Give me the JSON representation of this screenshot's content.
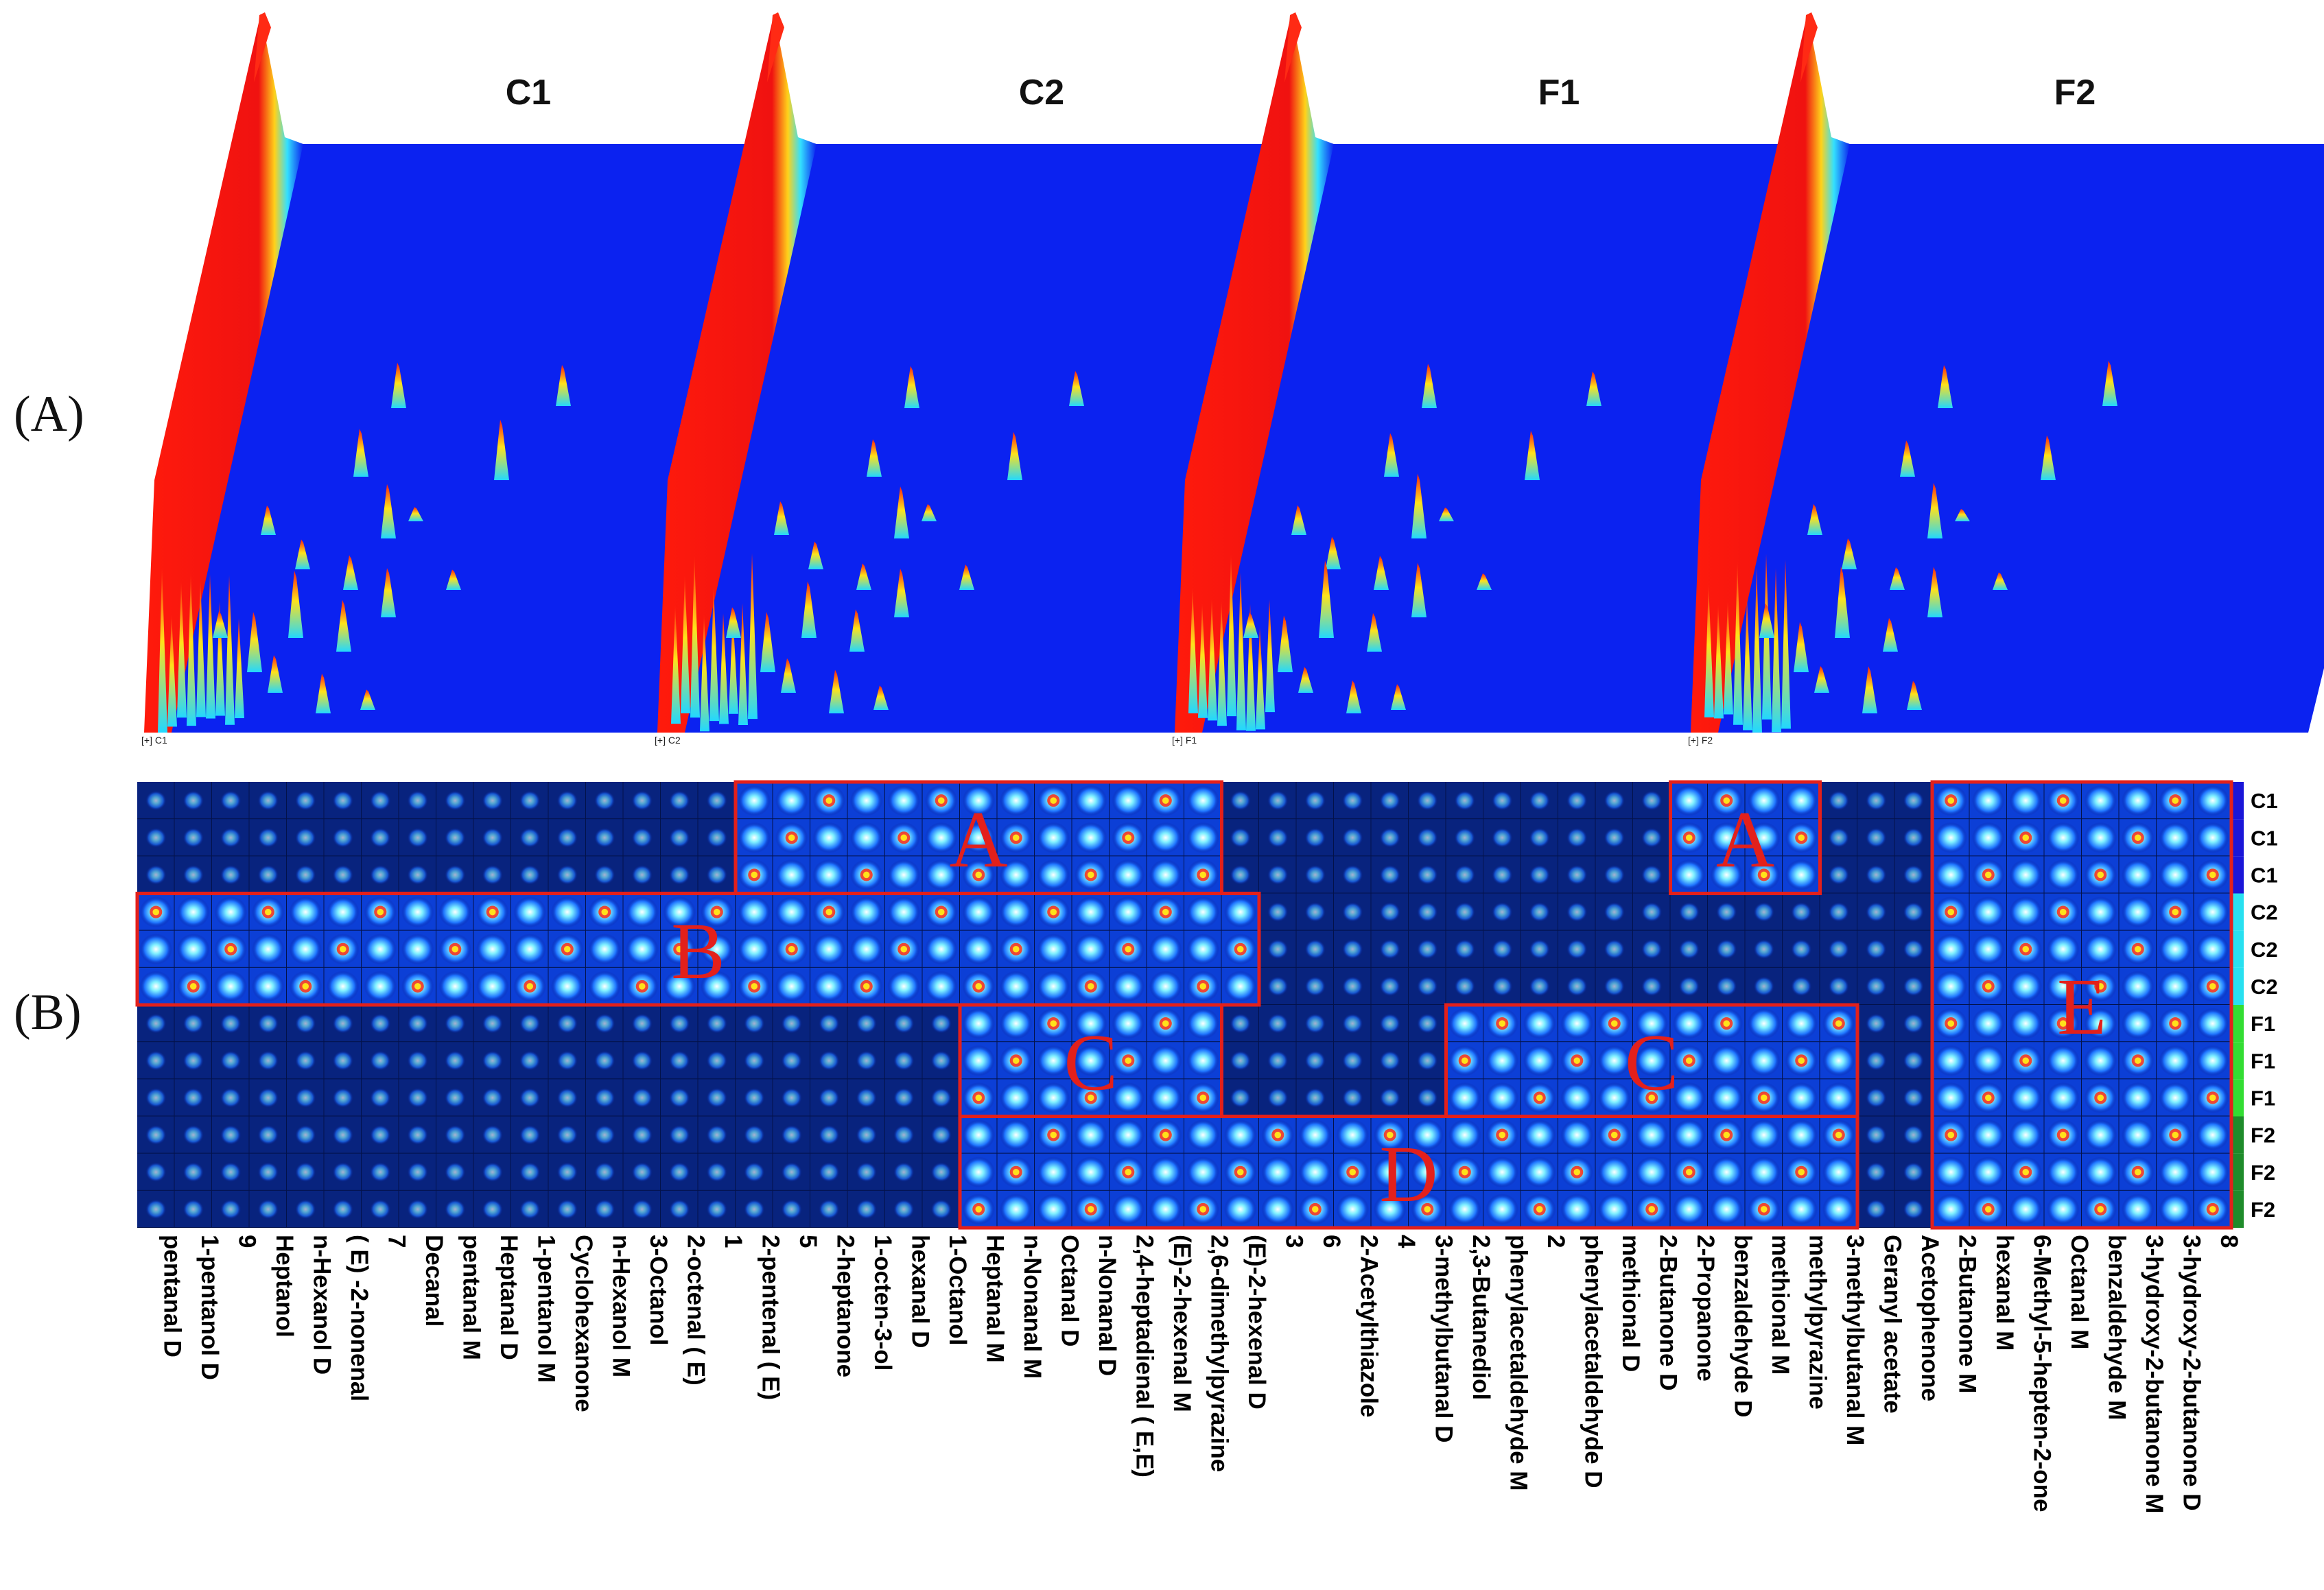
{
  "panel_labels": {
    "a": "(A)",
    "b": "(B)"
  },
  "chart_data": [
    {
      "type": "topographic-3d",
      "title": "(A)",
      "samples": [
        {
          "name": "C1",
          "corner_label": "[+] C1"
        },
        {
          "name": "C2",
          "corner_label": "[+] C2"
        },
        {
          "name": "F1",
          "corner_label": "[+] F1"
        },
        {
          "name": "F2",
          "corner_label": "[+] F2"
        }
      ],
      "colors": {
        "background": "#0b22f0",
        "rip": "#f2140f",
        "peak_low": "#19d7ff",
        "peak_mid": "#ffe21a"
      }
    },
    {
      "type": "heatmap",
      "title": "(B)",
      "row_labels": [
        "C1",
        "C1",
        "C1",
        "C2",
        "C2",
        "C2",
        "F1",
        "F1",
        "F1",
        "F2",
        "F2",
        "F2"
      ],
      "group_colors": {
        "C1": "#1a16d8",
        "C2": "#28e0f0",
        "F1": "#33dd33",
        "F2": "#1f8c2b"
      },
      "compounds": [
        "pentanal D",
        "1-pentanol D",
        "9",
        "Heptanol",
        "n-Hexanol D",
        "( E) -2-nonenal",
        "7",
        "Decanal",
        "pentanal M",
        "Heptanal D",
        "1-pentanol M",
        "Cyclohexanone",
        "n-Hexanol M",
        "3-Octanol",
        "2-octenal ( E)",
        "1",
        "2-pentenal ( E)",
        "5",
        "2-heptanone",
        "1-octen-3-ol",
        "hexanal D",
        "1-Octanol",
        "Heptanal M",
        "n-Nonanal M",
        "Octanal D",
        "n-Nonanal D",
        "2,4-heptadienal ( E,E)",
        "(E)-2-hexenal M",
        "2,6-dimethylpyrazine",
        "(E)-2-hexenal D",
        "3",
        "6",
        "2-Acetylthiazole",
        "4",
        "3-methylbutanal D",
        "2,3-Butanediol",
        "phenylacetaldehyde M",
        "2",
        "phenylacetaldehyde D",
        "methional D",
        "2-Butanone D",
        "2-Propanone",
        "benzaldehyde D",
        "methional M",
        "methylpyrazine",
        "3-methylbutanal M",
        "Geranyl acetate",
        "Acetophenone",
        "2-Butanone M",
        "hexanal M",
        "6-Methyl-5-hepten-2-one",
        "Octanal M",
        "benzaldehyde M",
        "3-hydroxy-2-butanone M",
        "3-hydroxy-2-butanone D",
        "8"
      ],
      "regions": [
        {
          "letter": "A",
          "from_compound": "2-pentenal ( E)",
          "to_compound": "2,6-dimethylpyrazine",
          "samples": "C1"
        },
        {
          "letter": "A",
          "from_compound": "2-Propanone",
          "to_compound": "methylpyrazine",
          "samples": "C1"
        },
        {
          "letter": "B",
          "from_compound": "pentanal D",
          "to_compound": "(E)-2-hexenal D",
          "samples": "C2"
        },
        {
          "letter": "C",
          "from_compound": "Heptanal M",
          "to_compound": "2,6-dimethylpyrazine",
          "samples": "F1"
        },
        {
          "letter": "C",
          "from_compound": "2,3-Butanediol",
          "to_compound": "3-methylbutanal M",
          "samples": "F1"
        },
        {
          "letter": "D",
          "from_compound": "Heptanal M",
          "to_compound": "3-methylbutanal M",
          "samples": "F2"
        },
        {
          "letter": "E",
          "from_compound": "2-Butanone M",
          "to_compound": "8",
          "samples": "C1, C2, F1, F2"
        }
      ],
      "highlight_color": "#e3201b"
    }
  ]
}
